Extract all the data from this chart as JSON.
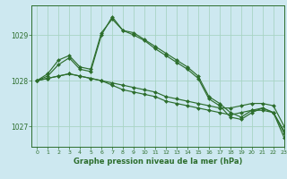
{
  "title": "Graphe pression niveau de la mer (hPa)",
  "background_color": "#cde8f0",
  "grid_color": "#a8d4c4",
  "line_color": "#2d6e2d",
  "marker_color": "#2d6e2d",
  "xlim": [
    -0.5,
    23
  ],
  "ylim": [
    1026.55,
    1029.65
  ],
  "yticks": [
    1027,
    1028,
    1029
  ],
  "xticks": [
    0,
    1,
    2,
    3,
    4,
    5,
    6,
    7,
    8,
    9,
    10,
    11,
    12,
    13,
    14,
    15,
    16,
    17,
    18,
    19,
    20,
    21,
    22,
    23
  ],
  "series": [
    [
      1028.0,
      1028.05,
      1028.1,
      1028.15,
      1028.1,
      1028.05,
      1028.0,
      1027.95,
      1027.9,
      1027.85,
      1027.8,
      1027.75,
      1027.65,
      1027.6,
      1027.55,
      1027.5,
      1027.45,
      1027.4,
      1027.4,
      1027.45,
      1027.5,
      1027.5,
      1027.45,
      1027.0
    ],
    [
      1028.0,
      1028.05,
      1028.1,
      1028.15,
      1028.1,
      1028.05,
      1028.0,
      1027.9,
      1027.8,
      1027.75,
      1027.7,
      1027.65,
      1027.55,
      1027.5,
      1027.45,
      1027.4,
      1027.35,
      1027.3,
      1027.25,
      1027.3,
      1027.35,
      1027.35,
      1027.3,
      1026.9
    ],
    [
      1028.0,
      1028.1,
      1028.35,
      1028.5,
      1028.25,
      1028.2,
      1029.0,
      1029.4,
      1029.1,
      1029.05,
      1028.9,
      1028.75,
      1028.6,
      1028.45,
      1028.3,
      1028.1,
      1027.65,
      1027.5,
      1027.3,
      1027.2,
      1027.35,
      1027.4,
      1027.3,
      1026.85
    ],
    [
      1028.0,
      1028.15,
      1028.45,
      1028.55,
      1028.3,
      1028.25,
      1029.05,
      1029.35,
      1029.1,
      1029.0,
      1028.88,
      1028.7,
      1028.55,
      1028.4,
      1028.25,
      1028.05,
      1027.6,
      1027.45,
      1027.2,
      1027.15,
      1027.3,
      1027.4,
      1027.3,
      1026.75
    ]
  ]
}
